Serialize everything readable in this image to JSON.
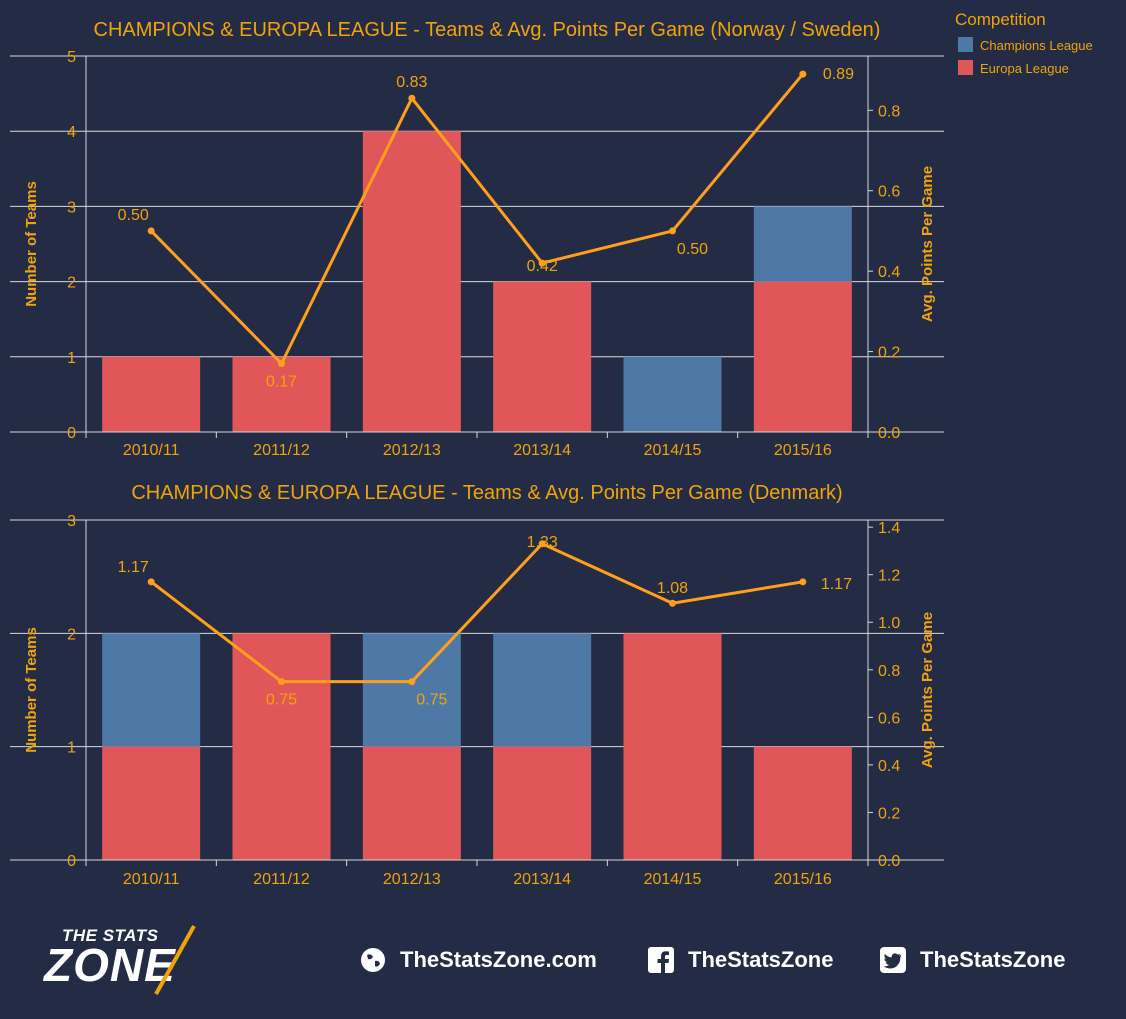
{
  "colors": {
    "background": "#232c44",
    "accent": "#f0a30a",
    "champions": "#4e79a7",
    "europa": "#e15759",
    "line": "#ff9f1c"
  },
  "legend": {
    "title": "Competition",
    "items": [
      {
        "label": "Champions League",
        "color": "#4e79a7"
      },
      {
        "label": "Europa League",
        "color": "#e15759"
      }
    ]
  },
  "chart_data": [
    {
      "type": "bar",
      "title": "CHAMPIONS & EUROPA LEAGUE - Teams & Avg. Points Per Game (Norway / Sweden)",
      "ylabel": "Number of Teams",
      "y2label": "Avg. Points Per Game",
      "categories": [
        "2010/11",
        "2011/12",
        "2012/13",
        "2013/14",
        "2014/15",
        "2015/16"
      ],
      "series": [
        {
          "name": "Europa League",
          "values": [
            1,
            1,
            4,
            2,
            0,
            2
          ]
        },
        {
          "name": "Champions League",
          "values": [
            0,
            0,
            0,
            0,
            1,
            1
          ]
        }
      ],
      "line": {
        "values": [
          0.5,
          0.17,
          0.83,
          0.42,
          0.5,
          0.89
        ],
        "labels": [
          "0.50",
          "0.17",
          "0.83",
          "0.42",
          "0.50",
          "0.89"
        ]
      },
      "ylim": [
        0,
        5
      ],
      "y2lim": [
        0,
        0.935
      ],
      "yticks": [
        0,
        1,
        2,
        3,
        4,
        5
      ],
      "y2ticks": [
        "0.0",
        "0.2",
        "0.4",
        "0.6",
        "0.8"
      ],
      "grid": true
    },
    {
      "type": "bar",
      "title": "CHAMPIONS & EUROPA LEAGUE - Teams & Avg. Points Per Game (Denmark)",
      "ylabel": "Number of Teams",
      "y2label": "Avg. Points Per Game",
      "categories": [
        "2010/11",
        "2011/12",
        "2012/13",
        "2013/14",
        "2014/15",
        "2015/16"
      ],
      "series": [
        {
          "name": "Europa League",
          "values": [
            1,
            2,
            1,
            1,
            2,
            1
          ]
        },
        {
          "name": "Champions League",
          "values": [
            1,
            0,
            1,
            1,
            0,
            0
          ]
        }
      ],
      "line": {
        "values": [
          1.17,
          0.75,
          0.75,
          1.33,
          1.08,
          1.17
        ],
        "labels": [
          "1.17",
          "0.75",
          "0.75",
          "1.33",
          "1.08",
          "1.17"
        ]
      },
      "ylim": [
        0,
        3
      ],
      "y2lim": [
        0,
        1.43
      ],
      "yticks": [
        0,
        1,
        2,
        3
      ],
      "y2ticks": [
        "0.0",
        "0.2",
        "0.4",
        "0.6",
        "0.8",
        "1.0",
        "1.2",
        "1.4"
      ],
      "grid": true
    }
  ],
  "footer": {
    "logo_top": "THE STATS",
    "logo_bottom": "ZONE",
    "website": "TheStatsZone.com",
    "facebook": "TheStatsZone",
    "twitter": "TheStatsZone"
  }
}
